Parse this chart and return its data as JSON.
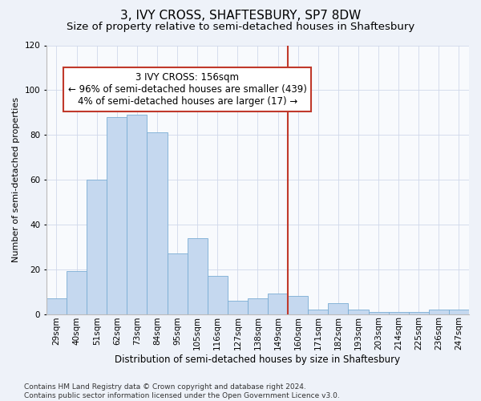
{
  "title": "3, IVY CROSS, SHAFTESBURY, SP7 8DW",
  "subtitle": "Size of property relative to semi-detached houses in Shaftesbury",
  "xlabel": "Distribution of semi-detached houses by size in Shaftesbury",
  "ylabel": "Number of semi-detached properties",
  "categories": [
    "29sqm",
    "40sqm",
    "51sqm",
    "62sqm",
    "73sqm",
    "84sqm",
    "95sqm",
    "105sqm",
    "116sqm",
    "127sqm",
    "138sqm",
    "149sqm",
    "160sqm",
    "171sqm",
    "182sqm",
    "193sqm",
    "203sqm",
    "214sqm",
    "225sqm",
    "236sqm",
    "247sqm"
  ],
  "values": [
    7,
    19,
    60,
    88,
    89,
    81,
    27,
    34,
    17,
    6,
    7,
    9,
    8,
    2,
    5,
    2,
    1,
    1,
    1,
    2,
    2
  ],
  "bar_color": "#c5d8ef",
  "bar_edge_color": "#7aadd4",
  "vline_x_index": 12,
  "vline_color": "#c0392b",
  "annotation_text": "3 IVY CROSS: 156sqm\n← 96% of semi-detached houses are smaller (439)\n4% of semi-detached houses are larger (17) →",
  "annotation_box_facecolor": "#ffffff",
  "annotation_box_edgecolor": "#c0392b",
  "ylim": [
    0,
    120
  ],
  "yticks": [
    0,
    20,
    40,
    60,
    80,
    100,
    120
  ],
  "background_color": "#eef2f9",
  "plot_background_color": "#f8fafd",
  "grid_color": "#d0d8ea",
  "footer_text": "Contains HM Land Registry data © Crown copyright and database right 2024.\nContains public sector information licensed under the Open Government Licence v3.0.",
  "title_fontsize": 11,
  "subtitle_fontsize": 9.5,
  "xlabel_fontsize": 8.5,
  "ylabel_fontsize": 8,
  "tick_fontsize": 7.5,
  "annotation_fontsize": 8.5,
  "footer_fontsize": 6.5
}
